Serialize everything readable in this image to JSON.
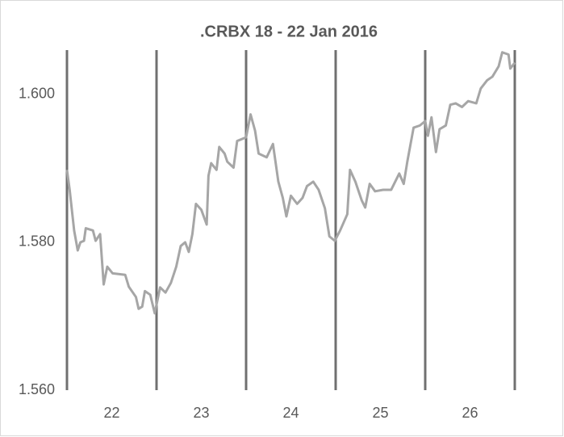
{
  "chart_data": {
    "type": "line",
    "title": ".CRBX 18 - 22 Jan 2016",
    "x": [
      21.5,
      21.53,
      21.55,
      21.58,
      21.62,
      21.65,
      21.69,
      21.71,
      21.79,
      21.82,
      21.87,
      21.91,
      21.95,
      22.01,
      22.15,
      22.19,
      22.27,
      22.3,
      22.34,
      22.37,
      22.43,
      22.48,
      22.54,
      22.6,
      22.66,
      22.72,
      22.77,
      22.82,
      22.86,
      22.9,
      22.94,
      23.0,
      23.06,
      23.08,
      23.11,
      23.17,
      23.2,
      23.26,
      23.29,
      23.36,
      23.4,
      23.5,
      23.55,
      23.6,
      23.64,
      23.73,
      23.8,
      23.86,
      23.91,
      23.95,
      24.0,
      24.07,
      24.13,
      24.18,
      24.25,
      24.31,
      24.38,
      24.43,
      24.49,
      24.55,
      24.63,
      24.66,
      24.72,
      24.79,
      24.83,
      24.88,
      24.94,
      25.03,
      25.12,
      25.21,
      25.26,
      25.3,
      25.37,
      25.44,
      25.5,
      25.53,
      25.57,
      25.62,
      25.66,
      25.73,
      25.78,
      25.84,
      25.91,
      25.98,
      26.07,
      26.12,
      26.19,
      26.25,
      26.32,
      26.36,
      26.43,
      26.45,
      26.5
    ],
    "values": [
      1.5898,
      1.5871,
      1.5849,
      1.5816,
      1.5789,
      1.58,
      1.5802,
      1.5819,
      1.5816,
      1.5802,
      1.5811,
      1.5743,
      1.5767,
      1.5758,
      1.5756,
      1.574,
      1.5726,
      1.571,
      1.5713,
      1.5734,
      1.5729,
      1.5704,
      1.5739,
      1.5732,
      1.5745,
      1.5767,
      1.5795,
      1.58,
      1.5787,
      1.5811,
      1.5852,
      1.5844,
      1.5824,
      1.589,
      1.5907,
      1.5898,
      1.5929,
      1.592,
      1.5909,
      1.5901,
      1.5937,
      1.5942,
      1.5973,
      1.5951,
      1.592,
      1.5915,
      1.5933,
      1.5882,
      1.586,
      1.5835,
      1.5863,
      1.5852,
      1.586,
      1.5876,
      1.5882,
      1.5871,
      1.5846,
      1.5808,
      1.5802,
      1.5816,
      1.5838,
      1.5898,
      1.5882,
      1.5857,
      1.5847,
      1.5879,
      1.5869,
      1.5871,
      1.5871,
      1.5893,
      1.5879,
      1.5909,
      1.5955,
      1.5958,
      1.5964,
      1.5944,
      1.5969,
      1.5922,
      1.5953,
      1.5958,
      1.5986,
      1.5988,
      1.5983,
      1.5991,
      1.5988,
      1.6008,
      1.6019,
      1.6024,
      1.6038,
      1.6057,
      1.6054,
      1.6035,
      1.6043
    ],
    "color": "#a6a6a6",
    "xlim": [
      21.5,
      26.5
    ],
    "xticks": [
      22,
      23,
      24,
      25,
      26
    ],
    "ylim": [
      1.56,
      1.606
    ],
    "yticks": [
      {
        "value": 1.56,
        "label": "1.560"
      },
      {
        "value": 1.58,
        "label": "1.580"
      },
      {
        "value": 1.6,
        "label": "1.600"
      }
    ]
  }
}
